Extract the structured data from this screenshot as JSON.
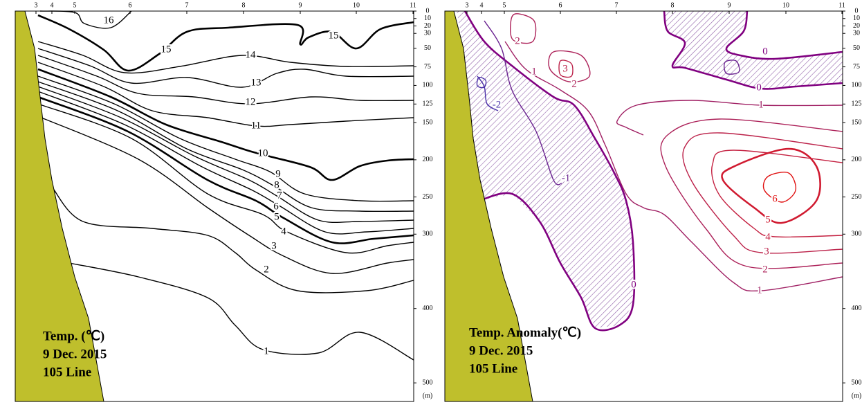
{
  "chart_data": [
    {
      "type": "contour",
      "annotations": [
        "Temp. (℃)",
        "9  Dec. 2015",
        "105 Line"
      ],
      "categories": [
        "3",
        "4",
        "5",
        "6",
        "7",
        "8",
        "9",
        "10",
        "11"
      ],
      "ylim": [
        0,
        525
      ],
      "yticks": [
        0,
        10,
        20,
        30,
        50,
        75,
        100,
        125,
        150,
        200,
        250,
        300,
        400,
        500
      ],
      "y_unit": "(m)",
      "levels": [
        16,
        15,
        14,
        13,
        12,
        11,
        10,
        9,
        8,
        7,
        6,
        5,
        4,
        3,
        2,
        1
      ],
      "colors": [
        "#000000",
        "#000000",
        "#000000",
        "#000000",
        "#000000",
        "#000000",
        "#000000",
        "#000000",
        "#000000",
        "#000000",
        "#000000",
        "#000000",
        "#000000",
        "#000000",
        "#000000",
        "#000000"
      ],
      "land_color": "#bfbf2c"
    },
    {
      "type": "contour",
      "annotations": [
        "Temp. Anomaly(℃)",
        "9  Dec. 2015",
        "105 Line"
      ],
      "categories": [
        "3",
        "4",
        "5",
        "6",
        "7",
        "8",
        "9",
        "10",
        "11"
      ],
      "ylim": [
        0,
        525
      ],
      "yticks": [
        0,
        10,
        20,
        30,
        50,
        75,
        100,
        125,
        150,
        200,
        250,
        300,
        400,
        500
      ],
      "y_unit": "(m)",
      "levels": [
        6,
        5,
        4,
        3,
        2,
        1,
        0,
        -1,
        -2
      ],
      "colors": [
        "#e01010",
        "#d01a30",
        "#c42040",
        "#bb2048",
        "#ac2058",
        "#a02064",
        "#800080",
        "#6a2290",
        "#4a30a8"
      ],
      "land_color": "#bfbf2c"
    }
  ]
}
